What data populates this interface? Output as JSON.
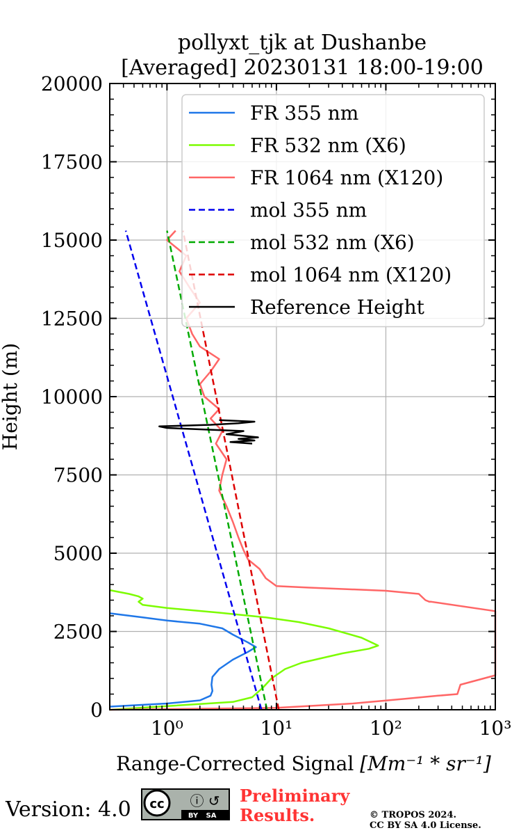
{
  "chart_data": {
    "type": "line",
    "title_line1": "pollyxt_tjk at Dushanbe",
    "title_line2": "[Averaged] 20230131 18:00-19:00",
    "xlabel": "Range-Corrected Signal",
    "xlabel_units": "[Mm⁻¹ * sr⁻¹]",
    "ylabel": "Height (m)",
    "xscale": "log",
    "xlim": [
      0.3,
      1000
    ],
    "ylim": [
      0,
      20000
    ],
    "xticks": [
      {
        "value": 1,
        "label": "10⁰"
      },
      {
        "value": 10,
        "label": "10¹"
      },
      {
        "value": 100,
        "label": "10²"
      },
      {
        "value": 1000,
        "label": "10³"
      }
    ],
    "yticks": [
      {
        "value": 0,
        "label": "0"
      },
      {
        "value": 2500,
        "label": "2500"
      },
      {
        "value": 5000,
        "label": "5000"
      },
      {
        "value": 7500,
        "label": "7500"
      },
      {
        "value": 10000,
        "label": "10000"
      },
      {
        "value": 12500,
        "label": "12500"
      },
      {
        "value": 15000,
        "label": "15000"
      },
      {
        "value": 17500,
        "label": "17500"
      },
      {
        "value": 20000,
        "label": "20000"
      }
    ],
    "grid": true,
    "legend_position": "upper-right",
    "series": [
      {
        "name": "FR 355 nm",
        "color": "#1f77e8",
        "style": "solid",
        "points": [
          [
            0.3,
            100
          ],
          [
            1.0,
            200
          ],
          [
            2.0,
            300
          ],
          [
            2.5,
            450
          ],
          [
            2.6,
            600
          ],
          [
            2.55,
            800
          ],
          [
            2.6,
            1050
          ],
          [
            3.0,
            1300
          ],
          [
            4.0,
            1600
          ],
          [
            5.5,
            1850
          ],
          [
            6.5,
            2000
          ],
          [
            5.5,
            2150
          ],
          [
            4.0,
            2400
          ],
          [
            3.2,
            2600
          ],
          [
            2.0,
            2750
          ],
          [
            1.0,
            2850
          ],
          [
            0.6,
            2950
          ],
          [
            0.3,
            3080
          ]
        ]
      },
      {
        "name": "FR 532 nm (X6)",
        "color": "#7cfc00",
        "style": "solid",
        "points": [
          [
            0.3,
            0
          ],
          [
            4.0,
            250
          ],
          [
            6.0,
            400
          ],
          [
            7.5,
            700
          ],
          [
            9.0,
            1000
          ],
          [
            12,
            1300
          ],
          [
            17,
            1500
          ],
          [
            40,
            1800
          ],
          [
            70,
            1950
          ],
          [
            85,
            2050
          ],
          [
            60,
            2300
          ],
          [
            30,
            2600
          ],
          [
            16,
            2800
          ],
          [
            8,
            2950
          ],
          [
            3,
            3100
          ],
          [
            1,
            3250
          ],
          [
            0.6,
            3350
          ],
          [
            0.55,
            3450
          ],
          [
            0.6,
            3550
          ],
          [
            0.55,
            3620
          ],
          [
            0.45,
            3700
          ],
          [
            0.3,
            3820
          ]
        ]
      },
      {
        "name": "FR 1064 nm (X120)",
        "color": "#ff6666",
        "style": "solid",
        "points": [
          [
            0.3,
            0
          ],
          [
            10,
            60
          ],
          [
            50,
            200
          ],
          [
            150,
            350
          ],
          [
            300,
            450
          ],
          [
            450,
            500
          ],
          [
            480,
            800
          ],
          [
            1000,
            1100
          ],
          [
            1000,
            3150
          ],
          [
            260,
            3450
          ],
          [
            250,
            3450
          ],
          [
            230,
            3500
          ],
          [
            200,
            3700
          ],
          [
            100,
            3800
          ],
          [
            20,
            3900
          ],
          [
            10,
            3950
          ],
          [
            8,
            4200
          ],
          [
            7,
            4500
          ],
          [
            5.5,
            4800
          ],
          [
            5,
            5100
          ],
          [
            4.5,
            5500
          ],
          [
            4,
            6000
          ],
          [
            3.5,
            6500
          ],
          [
            3.0,
            7000
          ],
          [
            3.2,
            7500
          ],
          [
            3.5,
            8000
          ],
          [
            2.8,
            8500
          ],
          [
            3.2,
            8900
          ],
          [
            2.5,
            9300
          ],
          [
            3.0,
            9600
          ],
          [
            2.2,
            10000
          ],
          [
            2.0,
            10400
          ],
          [
            2.5,
            10800
          ],
          [
            3.0,
            11200
          ],
          [
            2.0,
            11600
          ],
          [
            1.7,
            12000
          ],
          [
            1.5,
            12500
          ],
          [
            2.0,
            13000
          ],
          [
            1.6,
            13500
          ],
          [
            1.3,
            14000
          ],
          [
            1.5,
            14500
          ],
          [
            1.0,
            15000
          ],
          [
            1.2,
            15300
          ]
        ]
      },
      {
        "name": "mol 355 nm",
        "color": "#0000ee",
        "style": "dashed",
        "points": [
          [
            7.3,
            0
          ],
          [
            0.42,
            15300
          ]
        ]
      },
      {
        "name": "mol 532 nm (X6)",
        "color": "#00aa00",
        "style": "dashed",
        "points": [
          [
            8.2,
            0
          ],
          [
            1.0,
            15300
          ]
        ]
      },
      {
        "name": "mol 1064 nm (X120)",
        "color": "#dd0000",
        "style": "dashed",
        "points": [
          [
            10.5,
            0
          ],
          [
            1.4,
            15300
          ]
        ]
      },
      {
        "name": "Reference Height",
        "color": "#000000",
        "style": "solid",
        "points": [
          [
            6.0,
            8500
          ],
          [
            3.8,
            8550
          ],
          [
            6.3,
            8600
          ],
          [
            4.5,
            8650
          ],
          [
            6.8,
            8700
          ],
          [
            3.5,
            8800
          ],
          [
            5.0,
            8900
          ],
          [
            2.2,
            8950
          ],
          [
            1.0,
            9000
          ],
          [
            0.85,
            9050
          ],
          [
            2.5,
            9100
          ],
          [
            4.5,
            9150
          ],
          [
            6.3,
            9200
          ],
          [
            3.0,
            9250
          ]
        ]
      }
    ]
  },
  "footer": {
    "version": "Version: 4.0",
    "license_badge": {
      "left": "cc",
      "right_top": "ⓘ ↺",
      "by": "BY",
      "sa": "SA"
    },
    "preliminary_line1": "Preliminary",
    "preliminary_line2": "Results.",
    "copyright_line1": "© TROPOS 2024.",
    "copyright_line2": "CC BY SA 4.0 License."
  }
}
